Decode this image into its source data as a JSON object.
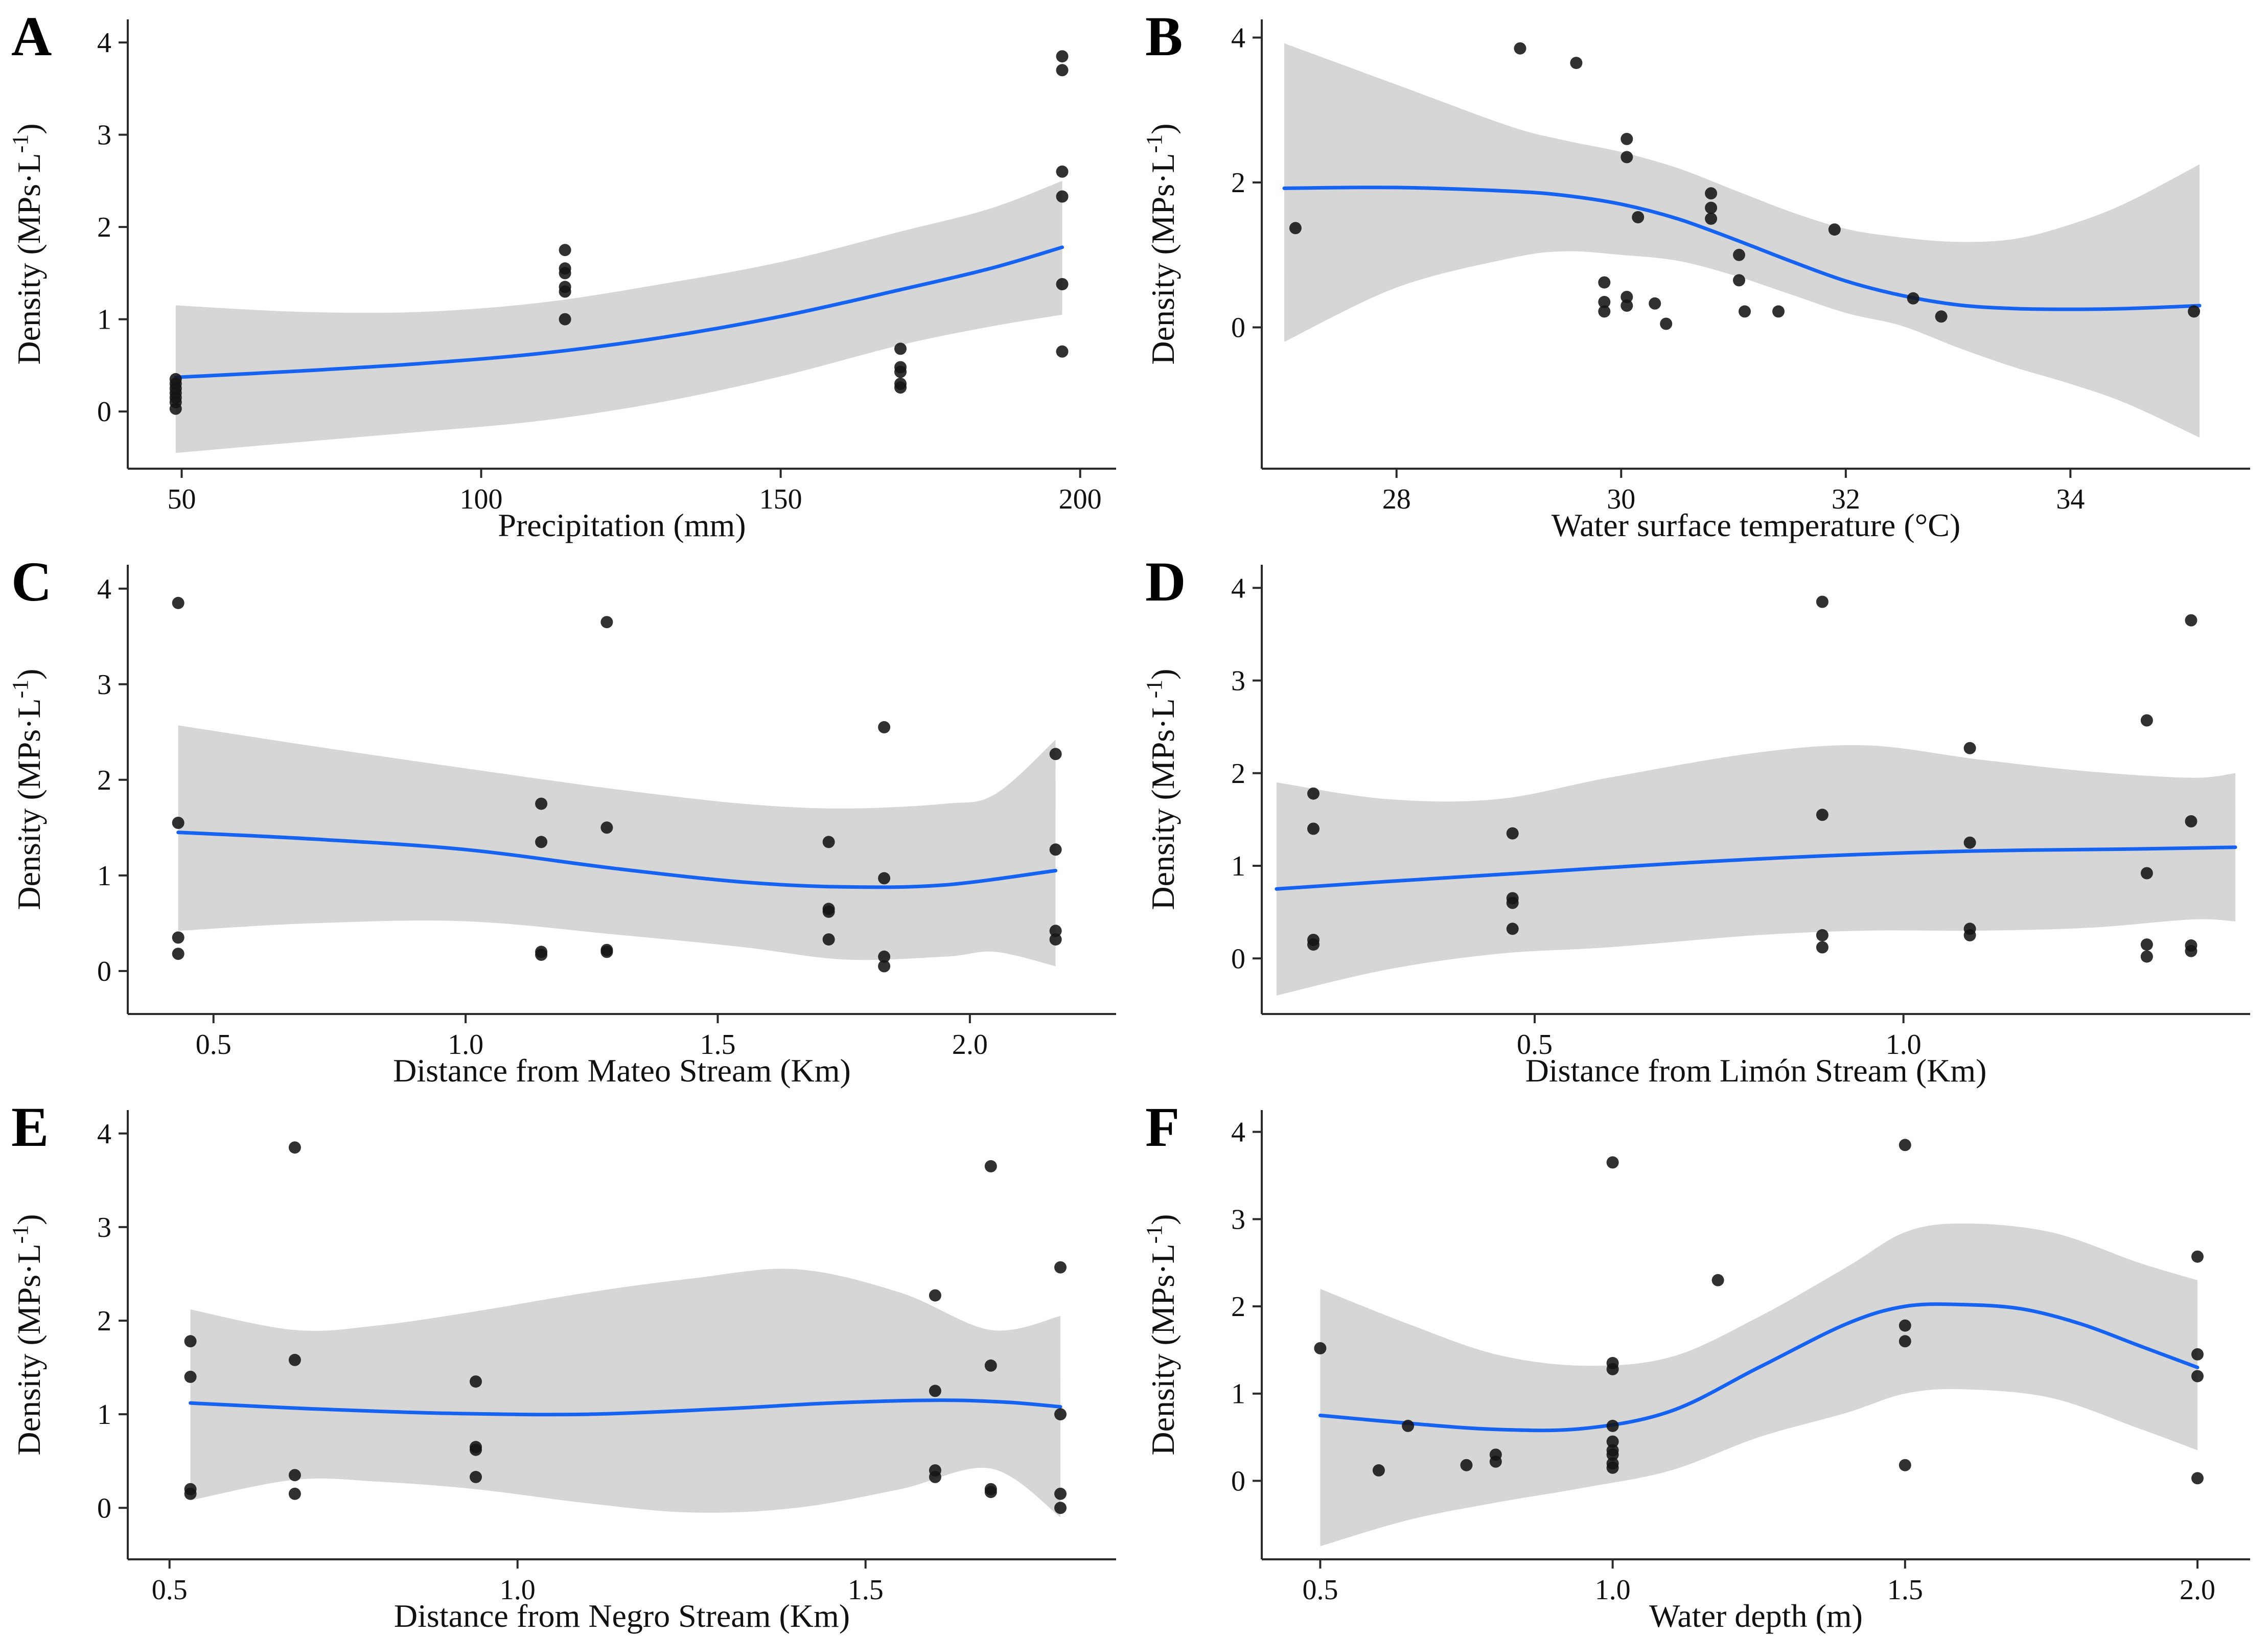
{
  "figure": {
    "background": "#ffffff",
    "style": {
      "line_color": "#1663F2",
      "band_color": "#D6D6D6",
      "point_color": "#151515",
      "point_opacity": 0.88,
      "axis_color": "#2A2A2A",
      "text_color": "#111111"
    },
    "y_axis_label_parts": [
      "Density (MPs·L",
      "-1",
      ")"
    ]
  },
  "chart_data": [
    {
      "panel_label": "A",
      "type": "scatter",
      "title": "",
      "x_label": "Precipitation (mm)",
      "y_label": "Density (MPs·L⁻¹)",
      "xlim": [
        41,
        206
      ],
      "ylim": [
        -0.62,
        4.25
      ],
      "x_ticks": {
        "values": [
          50,
          100,
          150,
          200
        ],
        "labels": [
          "50",
          "100",
          "150",
          "200"
        ]
      },
      "y_ticks": {
        "values": [
          0,
          1,
          2,
          3,
          4
        ],
        "labels": [
          "0",
          "1",
          "2",
          "3",
          "4"
        ]
      },
      "points": [
        [
          49,
          0.03
        ],
        [
          49,
          0.1
        ],
        [
          49,
          0.15
        ],
        [
          49,
          0.2
        ],
        [
          49,
          0.25
        ],
        [
          49,
          0.3
        ],
        [
          49,
          0.35
        ],
        [
          114,
          1.0
        ],
        [
          114,
          1.3
        ],
        [
          114,
          1.35
        ],
        [
          114,
          1.5
        ],
        [
          114,
          1.55
        ],
        [
          114,
          1.75
        ],
        [
          170,
          0.68
        ],
        [
          170,
          0.48
        ],
        [
          170,
          0.43
        ],
        [
          170,
          0.3
        ],
        [
          170,
          0.26
        ],
        [
          197,
          3.85
        ],
        [
          197,
          3.7
        ],
        [
          197,
          2.6
        ],
        [
          197,
          2.33
        ],
        [
          197,
          1.38
        ],
        [
          197,
          0.65
        ]
      ],
      "smooth_line": [
        [
          49,
          0.37
        ],
        [
          70,
          0.44
        ],
        [
          90,
          0.52
        ],
        [
          110,
          0.63
        ],
        [
          130,
          0.8
        ],
        [
          150,
          1.03
        ],
        [
          170,
          1.32
        ],
        [
          185,
          1.55
        ],
        [
          197,
          1.78
        ]
      ],
      "ci_band": [
        [
          49,
          -0.45,
          1.15
        ],
        [
          70,
          -0.33,
          1.08
        ],
        [
          90,
          -0.22,
          1.08
        ],
        [
          110,
          -0.1,
          1.18
        ],
        [
          130,
          0.1,
          1.38
        ],
        [
          150,
          0.38,
          1.62
        ],
        [
          170,
          0.72,
          1.95
        ],
        [
          185,
          0.92,
          2.2
        ],
        [
          197,
          1.05,
          2.5
        ]
      ]
    },
    {
      "panel_label": "B",
      "type": "scatter",
      "title": "",
      "x_label": "Water surface temperature (°C)",
      "y_label": "Density (MPs·L⁻¹)",
      "xlim": [
        26.8,
        35.6
      ],
      "ylim": [
        -1.95,
        4.25
      ],
      "x_ticks": {
        "values": [
          28,
          30,
          32,
          34
        ],
        "labels": [
          "28",
          "30",
          "32",
          "34"
        ]
      },
      "y_ticks": {
        "values": [
          0,
          2,
          4
        ],
        "labels": [
          "0",
          "2",
          "4"
        ]
      },
      "points": [
        [
          27.1,
          1.37
        ],
        [
          29.1,
          3.85
        ],
        [
          29.6,
          3.65
        ],
        [
          29.85,
          0.62
        ],
        [
          29.85,
          0.35
        ],
        [
          29.85,
          0.22
        ],
        [
          30.05,
          2.6
        ],
        [
          30.05,
          2.35
        ],
        [
          30.05,
          0.42
        ],
        [
          30.05,
          0.3
        ],
        [
          30.15,
          1.52
        ],
        [
          30.3,
          0.33
        ],
        [
          30.4,
          0.05
        ],
        [
          30.8,
          1.85
        ],
        [
          30.8,
          1.65
        ],
        [
          30.8,
          1.5
        ],
        [
          31.05,
          1.0
        ],
        [
          31.05,
          0.65
        ],
        [
          31.1,
          0.22
        ],
        [
          31.4,
          0.22
        ],
        [
          31.9,
          1.35
        ],
        [
          32.6,
          0.4
        ],
        [
          32.85,
          0.15
        ],
        [
          35.1,
          0.22
        ]
      ],
      "smooth_line": [
        [
          27.0,
          1.92
        ],
        [
          28,
          1.93
        ],
        [
          29,
          1.88
        ],
        [
          29.5,
          1.82
        ],
        [
          30,
          1.7
        ],
        [
          30.5,
          1.5
        ],
        [
          31,
          1.22
        ],
        [
          31.5,
          0.92
        ],
        [
          32,
          0.64
        ],
        [
          32.5,
          0.44
        ],
        [
          33,
          0.31
        ],
        [
          33.5,
          0.26
        ],
        [
          34,
          0.25
        ],
        [
          34.5,
          0.26
        ],
        [
          35.15,
          0.3
        ]
      ],
      "ci_band": [
        [
          27,
          -0.2,
          3.92
        ],
        [
          28,
          0.55,
          3.35
        ],
        [
          29,
          0.95,
          2.78
        ],
        [
          29.5,
          1.05,
          2.58
        ],
        [
          30,
          1.0,
          2.42
        ],
        [
          30.5,
          0.92,
          2.2
        ],
        [
          31,
          0.72,
          1.9
        ],
        [
          31.5,
          0.46,
          1.6
        ],
        [
          32,
          0.2,
          1.36
        ],
        [
          32.5,
          0.02,
          1.24
        ],
        [
          33,
          -0.28,
          1.18
        ],
        [
          33.5,
          -0.55,
          1.22
        ],
        [
          34,
          -0.78,
          1.42
        ],
        [
          34.5,
          -1.05,
          1.72
        ],
        [
          35.15,
          -1.52,
          2.25
        ]
      ]
    },
    {
      "panel_label": "C",
      "type": "scatter",
      "title": "",
      "x_label": "Distance from Mateo Stream (Km)",
      "y_label": "Density (MPs·L⁻¹)",
      "xlim": [
        0.33,
        2.29
      ],
      "ylim": [
        -0.45,
        4.25
      ],
      "x_ticks": {
        "values": [
          0.5,
          1.0,
          1.5,
          2.0
        ],
        "labels": [
          "0.5",
          "1.0",
          "1.5",
          "2.0"
        ]
      },
      "y_ticks": {
        "values": [
          0,
          1,
          2,
          3,
          4
        ],
        "labels": [
          "0",
          "1",
          "2",
          "3",
          "4"
        ]
      },
      "points": [
        [
          0.43,
          3.85
        ],
        [
          0.43,
          1.55
        ],
        [
          0.43,
          0.35
        ],
        [
          0.43,
          0.18
        ],
        [
          1.15,
          1.75
        ],
        [
          1.15,
          1.35
        ],
        [
          1.15,
          0.2
        ],
        [
          1.15,
          0.17
        ],
        [
          1.28,
          3.65
        ],
        [
          1.28,
          1.5
        ],
        [
          1.28,
          0.22
        ],
        [
          1.28,
          0.2
        ],
        [
          1.72,
          1.35
        ],
        [
          1.72,
          0.65
        ],
        [
          1.72,
          0.62
        ],
        [
          1.72,
          0.33
        ],
        [
          1.83,
          2.55
        ],
        [
          1.83,
          0.97
        ],
        [
          1.83,
          0.15
        ],
        [
          1.83,
          0.05
        ],
        [
          2.17,
          2.27
        ],
        [
          2.17,
          1.27
        ],
        [
          2.17,
          0.42
        ],
        [
          2.17,
          0.33
        ]
      ],
      "smooth_line": [
        [
          0.43,
          1.45
        ],
        [
          0.7,
          1.38
        ],
        [
          1.0,
          1.27
        ],
        [
          1.3,
          1.07
        ],
        [
          1.55,
          0.93
        ],
        [
          1.75,
          0.88
        ],
        [
          1.95,
          0.9
        ],
        [
          2.17,
          1.05
        ]
      ],
      "ci_band": [
        [
          0.43,
          0.42,
          2.57
        ],
        [
          0.7,
          0.5,
          2.35
        ],
        [
          1.0,
          0.52,
          2.12
        ],
        [
          1.3,
          0.38,
          1.9
        ],
        [
          1.55,
          0.25,
          1.75
        ],
        [
          1.75,
          0.12,
          1.7
        ],
        [
          1.95,
          0.15,
          1.75
        ],
        [
          2.05,
          0.2,
          1.85
        ],
        [
          2.17,
          0.05,
          2.42
        ]
      ]
    },
    {
      "panel_label": "D",
      "type": "scatter",
      "title": "",
      "x_label": "Distance from Limón Stream (Km)",
      "y_label": "Density (MPs·L⁻¹)",
      "xlim": [
        0.13,
        1.47
      ],
      "ylim": [
        -0.6,
        4.25
      ],
      "x_ticks": {
        "values": [
          0.5,
          1.0
        ],
        "labels": [
          "0.5",
          "1.0"
        ]
      },
      "y_ticks": {
        "values": [
          0,
          1,
          2,
          3,
          4
        ],
        "labels": [
          "0",
          "1",
          "2",
          "3",
          "4"
        ]
      },
      "points": [
        [
          0.2,
          1.78
        ],
        [
          0.2,
          1.4
        ],
        [
          0.2,
          0.2
        ],
        [
          0.2,
          0.15
        ],
        [
          0.47,
          1.35
        ],
        [
          0.47,
          0.65
        ],
        [
          0.47,
          0.6
        ],
        [
          0.47,
          0.32
        ],
        [
          0.89,
          3.85
        ],
        [
          0.89,
          1.55
        ],
        [
          0.89,
          0.25
        ],
        [
          0.89,
          0.12
        ],
        [
          1.09,
          2.27
        ],
        [
          1.09,
          1.25
        ],
        [
          1.09,
          0.32
        ],
        [
          1.09,
          0.25
        ],
        [
          1.33,
          2.57
        ],
        [
          1.33,
          0.92
        ],
        [
          1.33,
          0.15
        ],
        [
          1.33,
          0.02
        ],
        [
          1.39,
          3.65
        ],
        [
          1.39,
          1.48
        ],
        [
          1.39,
          0.14
        ],
        [
          1.39,
          0.08
        ]
      ],
      "smooth_line": [
        [
          0.15,
          0.75
        ],
        [
          0.3,
          0.83
        ],
        [
          0.5,
          0.93
        ],
        [
          0.7,
          1.03
        ],
        [
          0.9,
          1.11
        ],
        [
          1.1,
          1.16
        ],
        [
          1.3,
          1.18
        ],
        [
          1.45,
          1.2
        ]
      ],
      "ci_band": [
        [
          0.15,
          -0.4,
          1.9
        ],
        [
          0.3,
          -0.12,
          1.72
        ],
        [
          0.45,
          0.05,
          1.72
        ],
        [
          0.6,
          0.12,
          1.95
        ],
        [
          0.8,
          0.25,
          2.22
        ],
        [
          0.95,
          0.3,
          2.3
        ],
        [
          1.1,
          0.3,
          2.15
        ],
        [
          1.25,
          0.33,
          2.02
        ],
        [
          1.39,
          0.42,
          1.95
        ],
        [
          1.45,
          0.4,
          2.0
        ]
      ]
    },
    {
      "panel_label": "E",
      "type": "scatter",
      "title": "",
      "x_label": "Distance from Negro Stream (Km)",
      "y_label": "Density (MPs·L⁻¹)",
      "xlim": [
        0.44,
        1.86
      ],
      "ylim": [
        -0.55,
        4.25
      ],
      "x_ticks": {
        "values": [
          0.5,
          1.0,
          1.5
        ],
        "labels": [
          "0.5",
          "1.0",
          "1.5"
        ]
      },
      "y_ticks": {
        "values": [
          0,
          1,
          2,
          3,
          4
        ],
        "labels": [
          "0",
          "1",
          "2",
          "3",
          "4"
        ]
      },
      "points": [
        [
          0.53,
          1.78
        ],
        [
          0.53,
          1.4
        ],
        [
          0.53,
          0.2
        ],
        [
          0.53,
          0.15
        ],
        [
          0.68,
          3.85
        ],
        [
          0.68,
          1.58
        ],
        [
          0.68,
          0.35
        ],
        [
          0.68,
          0.15
        ],
        [
          0.94,
          1.35
        ],
        [
          0.94,
          0.65
        ],
        [
          0.94,
          0.62
        ],
        [
          0.94,
          0.33
        ],
        [
          1.6,
          2.27
        ],
        [
          1.6,
          1.25
        ],
        [
          1.6,
          0.4
        ],
        [
          1.6,
          0.33
        ],
        [
          1.68,
          3.65
        ],
        [
          1.68,
          1.52
        ],
        [
          1.68,
          0.2
        ],
        [
          1.68,
          0.17
        ],
        [
          1.78,
          2.57
        ],
        [
          1.78,
          1.0
        ],
        [
          1.78,
          0.15
        ],
        [
          1.78,
          0.0
        ]
      ],
      "smooth_line": [
        [
          0.53,
          1.12
        ],
        [
          0.7,
          1.06
        ],
        [
          0.9,
          1.01
        ],
        [
          1.1,
          1.0
        ],
        [
          1.3,
          1.06
        ],
        [
          1.45,
          1.12
        ],
        [
          1.6,
          1.15
        ],
        [
          1.7,
          1.13
        ],
        [
          1.78,
          1.08
        ]
      ],
      "ci_band": [
        [
          0.53,
          0.08,
          2.12
        ],
        [
          0.68,
          0.3,
          1.9
        ],
        [
          0.8,
          0.28,
          1.95
        ],
        [
          0.94,
          0.2,
          2.1
        ],
        [
          1.1,
          0.05,
          2.3
        ],
        [
          1.25,
          -0.05,
          2.45
        ],
        [
          1.4,
          0.0,
          2.55
        ],
        [
          1.55,
          0.2,
          2.3
        ],
        [
          1.68,
          0.42,
          1.9
        ],
        [
          1.78,
          -0.1,
          2.05
        ]
      ]
    },
    {
      "panel_label": "F",
      "type": "scatter",
      "title": "",
      "x_label": "Water depth (m)",
      "y_label": "Density (MPs·L⁻¹)",
      "xlim": [
        0.4,
        2.09
      ],
      "ylim": [
        -0.9,
        4.25
      ],
      "x_ticks": {
        "values": [
          0.5,
          1.0,
          1.5,
          2.0
        ],
        "labels": [
          "0.5",
          "1.0",
          "1.5",
          "2.0"
        ]
      },
      "y_ticks": {
        "values": [
          0,
          1,
          2,
          3,
          4
        ],
        "labels": [
          "0",
          "1",
          "2",
          "3",
          "4"
        ]
      },
      "points": [
        [
          0.5,
          1.52
        ],
        [
          0.6,
          0.12
        ],
        [
          0.65,
          0.63
        ],
        [
          0.75,
          0.18
        ],
        [
          0.8,
          0.3
        ],
        [
          0.8,
          0.22
        ],
        [
          1.0,
          3.65
        ],
        [
          1.0,
          1.35
        ],
        [
          1.0,
          1.28
        ],
        [
          1.0,
          0.63
        ],
        [
          1.0,
          0.45
        ],
        [
          1.0,
          0.35
        ],
        [
          1.0,
          0.3
        ],
        [
          1.0,
          0.2
        ],
        [
          1.0,
          0.15
        ],
        [
          1.18,
          2.3
        ],
        [
          1.5,
          3.85
        ],
        [
          1.5,
          1.78
        ],
        [
          1.5,
          1.6
        ],
        [
          1.5,
          0.18
        ],
        [
          2.0,
          2.57
        ],
        [
          2.0,
          1.45
        ],
        [
          2.0,
          1.2
        ],
        [
          2.0,
          0.03
        ]
      ],
      "smooth_line": [
        [
          0.5,
          0.75
        ],
        [
          0.65,
          0.66
        ],
        [
          0.8,
          0.59
        ],
        [
          0.95,
          0.6
        ],
        [
          1.1,
          0.8
        ],
        [
          1.25,
          1.3
        ],
        [
          1.4,
          1.8
        ],
        [
          1.5,
          2.0
        ],
        [
          1.6,
          2.02
        ],
        [
          1.7,
          1.97
        ],
        [
          1.8,
          1.8
        ],
        [
          1.9,
          1.55
        ],
        [
          2.0,
          1.3
        ]
      ],
      "ci_band": [
        [
          0.5,
          -0.75,
          2.2
        ],
        [
          0.65,
          -0.45,
          1.8
        ],
        [
          0.8,
          -0.25,
          1.45
        ],
        [
          0.95,
          -0.08,
          1.32
        ],
        [
          1.1,
          0.12,
          1.42
        ],
        [
          1.25,
          0.5,
          1.88
        ],
        [
          1.4,
          0.78,
          2.45
        ],
        [
          1.5,
          1.0,
          2.85
        ],
        [
          1.6,
          1.05,
          2.95
        ],
        [
          1.75,
          0.95,
          2.85
        ],
        [
          1.9,
          0.6,
          2.5
        ],
        [
          2.0,
          0.35,
          2.3
        ]
      ]
    }
  ]
}
